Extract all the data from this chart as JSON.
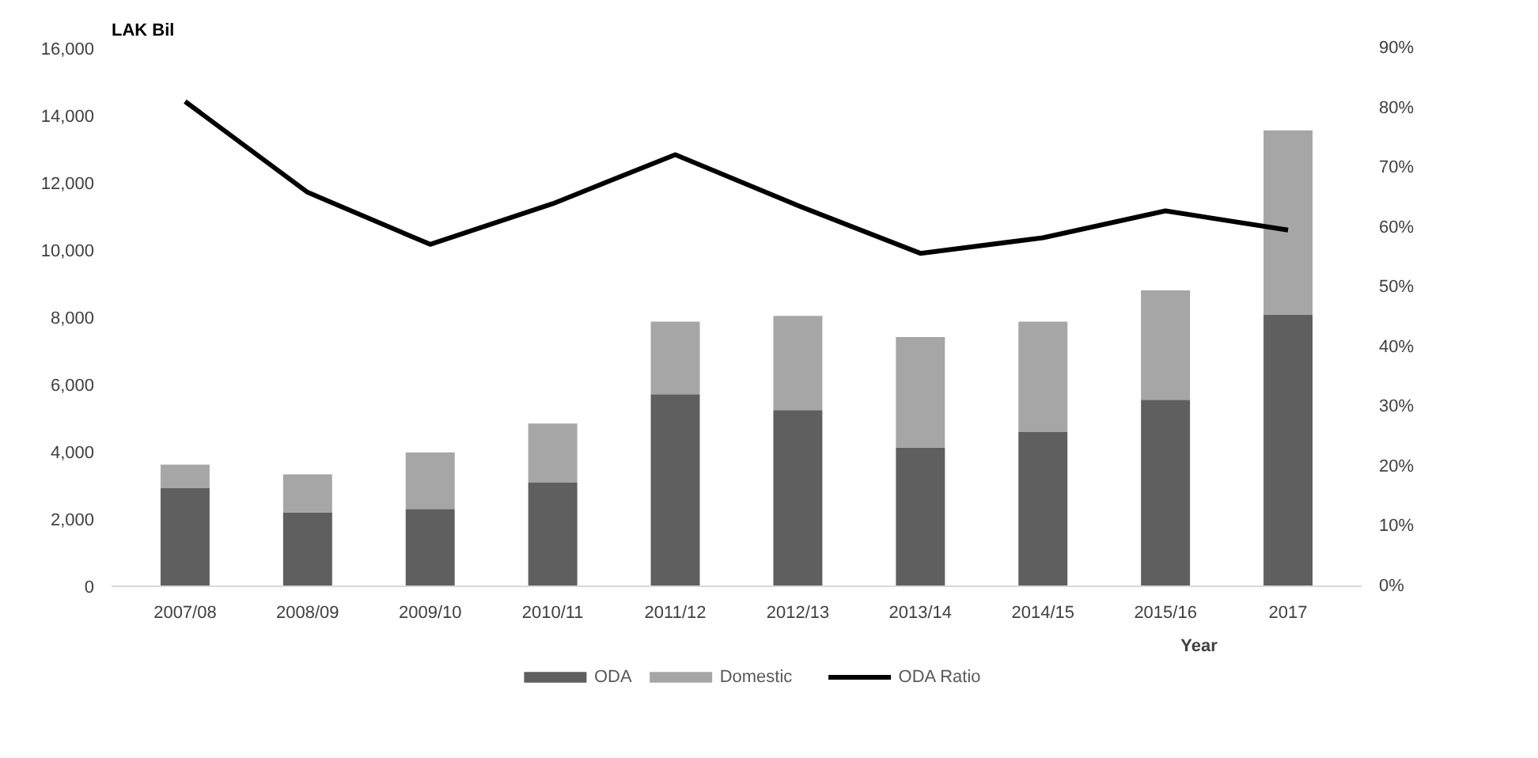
{
  "chart_data": {
    "type": "bar",
    "stacked": true,
    "ylabel": "LAK Bil",
    "xlabel": "Year",
    "categories": [
      "2007/08",
      "2008/09",
      "2009/10",
      "2010/11",
      "2011/12",
      "2012/13",
      "2013/14",
      "2014/15",
      "2015/16",
      "2017"
    ],
    "series": [
      {
        "name": "ODA",
        "color": "#5f5f5f",
        "values": [
          2920,
          2200,
          2300,
          3080,
          5710,
          5240,
          4130,
          4590,
          5550,
          8070
        ]
      },
      {
        "name": "Domestic",
        "color": "#a6a6a6",
        "values": [
          700,
          1130,
          1680,
          1760,
          2160,
          2800,
          3280,
          3280,
          3250,
          5490
        ]
      },
      {
        "name": "ODA Ratio",
        "type": "line",
        "axis": "y2",
        "color": "#000000",
        "values": [
          81.1,
          65.9,
          57.2,
          64.0,
          72.2,
          63.7,
          55.7,
          58.3,
          62.8,
          59.6
        ]
      }
    ],
    "ylim": [
      0,
      16000
    ],
    "yticks": [
      {
        "value": 0,
        "label": "0"
      },
      {
        "value": 2000,
        "label": "2,000"
      },
      {
        "value": 4000,
        "label": "4,000"
      },
      {
        "value": 6000,
        "label": "6,000"
      },
      {
        "value": 8000,
        "label": "8,000"
      },
      {
        "value": 10000,
        "label": "10,000"
      },
      {
        "value": 12000,
        "label": "12,000"
      },
      {
        "value": 14000,
        "label": "14,000"
      },
      {
        "value": 16000,
        "label": "16,000"
      }
    ],
    "y2lim": [
      0,
      90
    ],
    "y2ticks": [
      {
        "value": 0,
        "label": "0%"
      },
      {
        "value": 10,
        "label": "10%"
      },
      {
        "value": 20,
        "label": "20%"
      },
      {
        "value": 30,
        "label": "30%"
      },
      {
        "value": 40,
        "label": "40%"
      },
      {
        "value": 50,
        "label": "50%"
      },
      {
        "value": 60,
        "label": "60%"
      },
      {
        "value": 70,
        "label": "70%"
      },
      {
        "value": 80,
        "label": "80%"
      },
      {
        "value": 90,
        "label": "90%"
      }
    ],
    "legend": "bottom",
    "grid": false
  }
}
